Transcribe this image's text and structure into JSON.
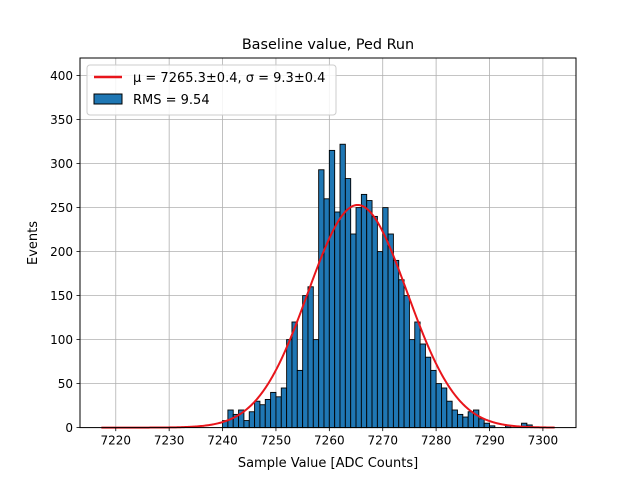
{
  "chart_data": {
    "type": "bar",
    "title": "Baseline value, Ped Run",
    "xlabel": "Sample Value [ADC Counts]",
    "ylabel": "Events",
    "xlim": [
      7213.3,
      7306.2
    ],
    "ylim": [
      0,
      420
    ],
    "xticks": [
      7220,
      7230,
      7240,
      7250,
      7260,
      7270,
      7280,
      7290,
      7300
    ],
    "yticks": [
      0,
      50,
      100,
      150,
      200,
      250,
      300,
      350,
      400
    ],
    "grid": true,
    "legend_position": "upper left",
    "bar_color": "#1f77b4",
    "fit_color": "#e8151b",
    "bins": {
      "start": 7240,
      "width": 1,
      "counts": [
        8,
        20,
        15,
        20,
        8,
        18,
        30,
        26,
        32,
        40,
        35,
        45,
        100,
        120,
        65,
        150,
        160,
        100,
        293,
        260,
        315,
        245,
        322,
        283,
        220,
        250,
        265,
        258,
        240,
        200,
        250,
        220,
        190,
        168,
        150,
        100,
        120,
        95,
        80,
        65,
        50,
        45,
        30,
        20,
        15,
        12,
        18,
        20,
        10,
        5,
        2,
        0,
        0,
        2,
        0,
        0,
        5,
        3
      ]
    },
    "fit": {
      "mu": 7265.3,
      "sigma": 9.3,
      "amplitude": 253,
      "x_range": [
        7217.3,
        7302.2
      ]
    },
    "legend": [
      {
        "label": "μ = 7265.3±0.4, σ = 9.3±0.4",
        "kind": "line",
        "color": "#e8151b"
      },
      {
        "label": "RMS = 9.54",
        "kind": "patch",
        "color": "#1f77b4"
      }
    ]
  }
}
